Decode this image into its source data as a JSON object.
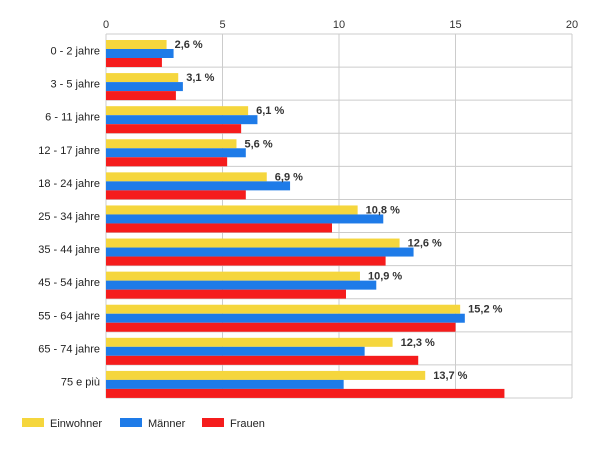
{
  "chart_data": {
    "type": "bar",
    "orientation": "horizontal",
    "categories": [
      "0 - 2 jahre",
      "3 - 5 jahre",
      "6 - 11 jahre",
      "12 - 17 jahre",
      "18 - 24 jahre",
      "25 - 34 jahre",
      "35 - 44 jahre",
      "45 - 54 jahre",
      "55 - 64 jahre",
      "65 - 74 jahre",
      "75 e più"
    ],
    "series": [
      {
        "name": "Einwohner",
        "color": "#f5d63d",
        "values": [
          2.6,
          3.1,
          6.1,
          5.6,
          6.9,
          10.8,
          12.6,
          10.9,
          15.2,
          12.3,
          13.7
        ]
      },
      {
        "name": "Männer",
        "color": "#1e7be8",
        "values": [
          2.9,
          3.3,
          6.5,
          6.0,
          7.9,
          11.9,
          13.2,
          11.6,
          15.4,
          11.1,
          10.2
        ]
      },
      {
        "name": "Frauen",
        "color": "#f51c1c",
        "values": [
          2.4,
          3.0,
          5.8,
          5.2,
          6.0,
          9.7,
          12.0,
          10.3,
          15.0,
          13.4,
          17.1
        ]
      }
    ],
    "data_labels": [
      "2,6 %",
      "3,1 %",
      "6,1 %",
      "5,6 %",
      "6,9 %",
      "10,8 %",
      "12,6 %",
      "10,9 %",
      "15,2 %",
      "12,3 %",
      "13,7 %"
    ],
    "xticks": [
      "0",
      "5",
      "10",
      "15",
      "20"
    ],
    "xlim": [
      0,
      20
    ],
    "axis_position": "top",
    "grid": true,
    "legend_position": "bottom-left"
  }
}
